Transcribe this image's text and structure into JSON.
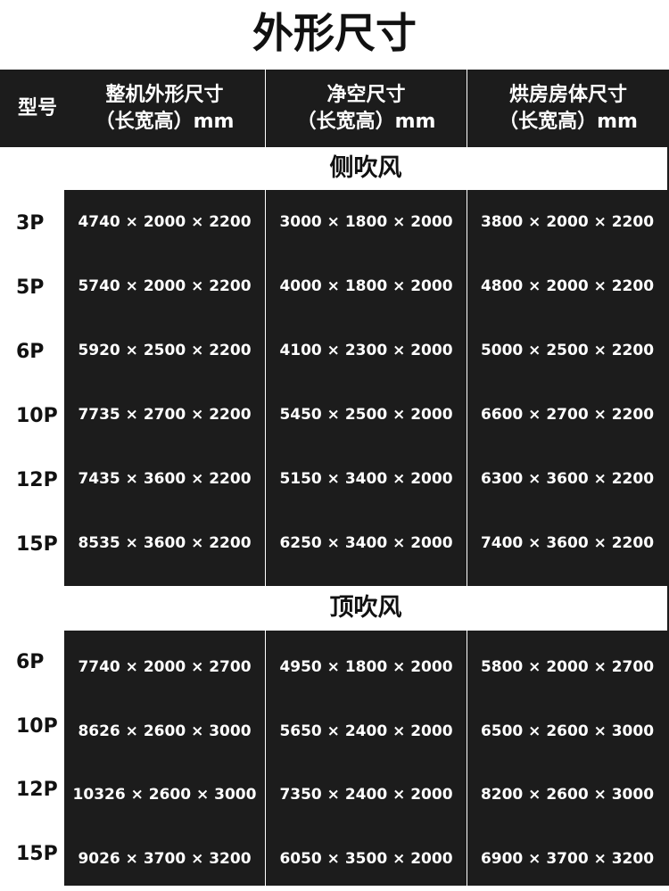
{
  "title": "外形尺寸",
  "header": {
    "model": "型号",
    "col1": [
      "整机外形尺寸",
      "（长宽高）mm"
    ],
    "col2": [
      "净空尺寸",
      "（长宽高）mm"
    ],
    "col3": [
      "烘房房体尺寸",
      "（长宽高）mm"
    ]
  },
  "sections": [
    {
      "label": "侧吹风",
      "rows": [
        {
          "model": "3P",
          "overall": "4740 × 2000 × 2200",
          "clear": "3000 × 1800 × 2000",
          "room": "3800 × 2000 × 2200"
        },
        {
          "model": "5P",
          "overall": "5740 × 2000 × 2200",
          "clear": "4000 × 1800 × 2000",
          "room": "4800 × 2000 × 2200"
        },
        {
          "model": "6P",
          "overall": "5920 × 2500 × 2200",
          "clear": "4100 × 2300 × 2000",
          "room": "5000 × 2500 × 2200"
        },
        {
          "model": "10P",
          "overall": "7735 × 2700 × 2200",
          "clear": "5450 × 2500 × 2000",
          "room": "6600 × 2700 × 2200"
        },
        {
          "model": "12P",
          "overall": "7435 × 3600 × 2200",
          "clear": "5150 × 3400 × 2000",
          "room": "6300 × 3600 × 2200"
        },
        {
          "model": "15P",
          "overall": "8535 × 3600 × 2200",
          "clear": "6250 × 3400 × 2000",
          "room": "7400 × 3600 × 2200"
        }
      ]
    },
    {
      "label": "顶吹风",
      "rows": [
        {
          "model": "6P",
          "overall": "7740 × 2000 × 2700",
          "clear": "4950 × 1800 × 2000",
          "room": "5800 × 2000 × 2700"
        },
        {
          "model": "10P",
          "overall": "8626 × 2600 × 3000",
          "clear": "5650 × 2400 × 2000",
          "room": "6500 × 2600 × 3000"
        },
        {
          "model": "12P",
          "overall": "10326 × 2600 × 3000",
          "clear": "7350 × 2400 × 2000",
          "room": "8200 × 2600 × 3000"
        },
        {
          "model": "15P",
          "overall": "9026 × 3700 × 3200",
          "clear": "6050 × 3500 × 2000",
          "room": "6900 × 3700 × 3200"
        }
      ]
    }
  ]
}
